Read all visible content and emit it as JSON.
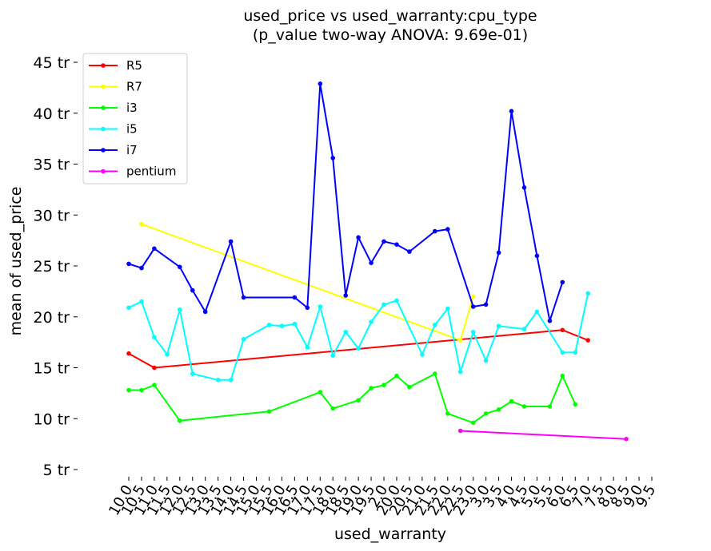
{
  "chart_data": {
    "type": "line",
    "title": "used_price vs used_warranty:cpu_type",
    "subtitle": "(p_value two-way ANOVA: 9.69e-01)",
    "xlabel": "used_warranty",
    "ylabel": "mean of used_price",
    "categories": [
      "10.0",
      "10.5",
      "11.0",
      "11.5",
      "12.0",
      "12.5",
      "13.0",
      "13.5",
      "14.0",
      "14.5",
      "15.0",
      "15.5",
      "16.0",
      "16.5",
      "17.0",
      "17.5",
      "18.0",
      "18.5",
      "19.0",
      "19.5",
      "2.0",
      "20.0",
      "20.5",
      "21.0",
      "21.5",
      "22.0",
      "22.5",
      "23.0",
      "3.0",
      "3.5",
      "4.0",
      "4.5",
      "5.0",
      "5.5",
      "6.0",
      "6.5",
      "7.0",
      "7.5",
      "8.0",
      "8.5",
      "9.0",
      "9.5"
    ],
    "xtick_labels": [
      "10.0",
      "10.5",
      "11.0",
      "11.5",
      "12.0",
      "12.5",
      "13.0",
      "13.5",
      "14.0",
      "14.5",
      "15.0",
      "15.5",
      "16.0",
      "16.5",
      "17.0",
      "17.5",
      "18.0",
      "18.5",
      "19.0",
      "19.5",
      "2.0",
      "20.0",
      "20.5",
      "21.0",
      "21.5",
      "22.0",
      "22.5",
      "23.0",
      "3.0",
      "3.5",
      "4.0",
      "4.5",
      "5.0",
      "5.5",
      "6.0",
      "6.5",
      "7.0",
      "7.5",
      "8.0",
      "8.5",
      "9.0",
      "9.5"
    ],
    "yticks": [
      5,
      10,
      15,
      20,
      25,
      30,
      35,
      40,
      45
    ],
    "ytick_labels": [
      "5 tr",
      "10 tr",
      "15 tr",
      "20 tr",
      "25 tr",
      "30 tr",
      "35 tr",
      "40 tr",
      "45 tr"
    ],
    "ylim": [
      4.5,
      46
    ],
    "legend_position": "top-left",
    "grid": false,
    "series": [
      {
        "name": "R5",
        "color": "#ff0000",
        "values": [
          16.4,
          null,
          15.0,
          null,
          null,
          null,
          null,
          null,
          null,
          null,
          null,
          null,
          null,
          null,
          null,
          null,
          null,
          null,
          null,
          null,
          null,
          null,
          null,
          null,
          null,
          null,
          null,
          null,
          null,
          null,
          null,
          null,
          null,
          null,
          18.7,
          null,
          17.7,
          null,
          null,
          null,
          null,
          null
        ]
      },
      {
        "name": "R7",
        "color": "#ffff00",
        "values": [
          null,
          29.1,
          null,
          null,
          null,
          null,
          null,
          null,
          null,
          null,
          null,
          null,
          null,
          null,
          null,
          null,
          null,
          null,
          null,
          null,
          null,
          null,
          null,
          null,
          null,
          null,
          17.7,
          22.0,
          null,
          null,
          null,
          null,
          null,
          null,
          null,
          null,
          null,
          null,
          null,
          null,
          null,
          null
        ]
      },
      {
        "name": "i3",
        "color": "#00ff00",
        "values": [
          12.8,
          12.8,
          13.3,
          null,
          9.8,
          null,
          null,
          null,
          null,
          null,
          null,
          10.7,
          null,
          null,
          null,
          12.6,
          11.0,
          null,
          11.8,
          13.0,
          13.3,
          14.2,
          13.1,
          null,
          14.4,
          10.5,
          null,
          9.6,
          10.5,
          10.9,
          11.7,
          11.2,
          null,
          11.2,
          14.2,
          11.4,
          null,
          null,
          null,
          null,
          null,
          null
        ]
      },
      {
        "name": "i5",
        "color": "#00ffff",
        "values": [
          20.9,
          21.5,
          18.0,
          16.3,
          20.7,
          14.4,
          null,
          13.8,
          13.8,
          17.8,
          null,
          19.2,
          19.1,
          19.3,
          17.0,
          21.0,
          16.2,
          18.5,
          16.9,
          19.5,
          21.2,
          21.6,
          null,
          16.3,
          19.2,
          20.8,
          14.6,
          18.5,
          15.7,
          19.1,
          null,
          18.8,
          20.5,
          null,
          16.5,
          16.5,
          22.3,
          null,
          null,
          null,
          null,
          null
        ]
      },
      {
        "name": "i7",
        "color": "#0000ff",
        "values": [
          25.2,
          24.8,
          26.7,
          null,
          24.9,
          22.6,
          20.5,
          null,
          27.4,
          21.9,
          null,
          null,
          null,
          21.9,
          20.9,
          42.9,
          35.6,
          22.1,
          27.8,
          25.3,
          27.4,
          27.1,
          26.4,
          null,
          28.4,
          28.6,
          null,
          21.0,
          21.2,
          26.3,
          40.2,
          32.7,
          26.0,
          19.6,
          23.4,
          null,
          null,
          null,
          null,
          null,
          null,
          null
        ]
      },
      {
        "name": "pentium",
        "color": "#ff00ff",
        "values": [
          null,
          null,
          null,
          null,
          null,
          null,
          null,
          null,
          null,
          null,
          null,
          null,
          null,
          null,
          null,
          null,
          null,
          null,
          null,
          null,
          null,
          null,
          null,
          null,
          null,
          null,
          8.8,
          null,
          null,
          null,
          null,
          null,
          null,
          null,
          null,
          null,
          null,
          null,
          null,
          8.0,
          null,
          null
        ]
      }
    ]
  }
}
